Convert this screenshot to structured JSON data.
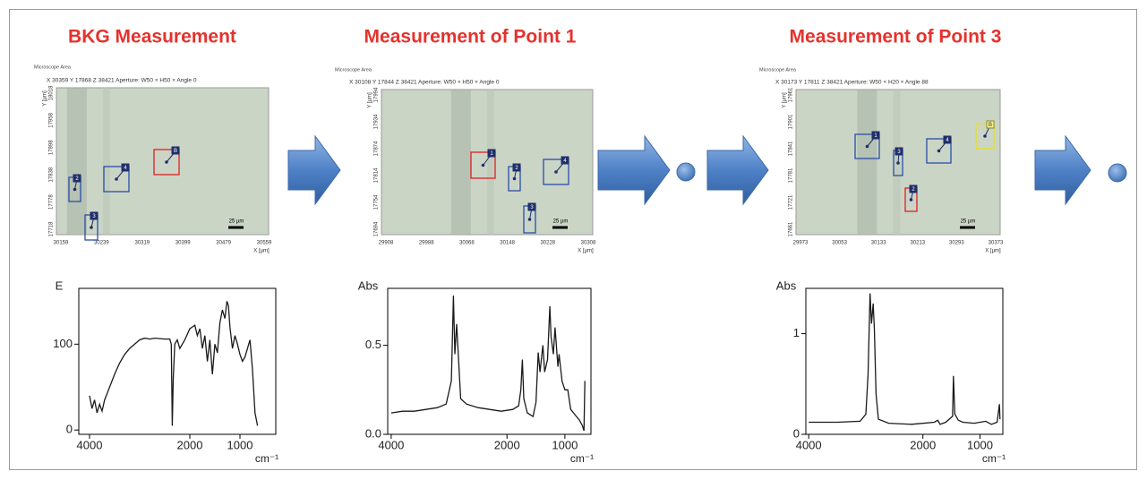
{
  "panels": [
    {
      "title": "BKG Measurement",
      "microscope": {
        "header": "Microscope Area",
        "info": "X 30359  Y 17868  Z 38421   Aperture: W50 × H50 × Angle 0",
        "y_label": "Y [µm]",
        "x_label": "X [µm]",
        "yticks": [
          18018,
          17958,
          17898,
          17838,
          17778,
          17718
        ],
        "xticks": [
          30159,
          30239,
          30319,
          30399,
          30479,
          30559
        ],
        "box_labels": [
          "2",
          "3",
          "4",
          "B"
        ],
        "scale": "25 µm"
      },
      "chart_data": {
        "type": "line",
        "y_label": "E",
        "x_label": "cm⁻¹",
        "xlim": [
          4214,
          286
        ],
        "ylim": [
          -5,
          165
        ],
        "xticks": [
          4000,
          2000,
          1000
        ],
        "yticks": [
          0,
          100
        ],
        "color": "#1a1a1a",
        "x": [
          4000,
          3950,
          3900,
          3850,
          3800,
          3750,
          3700,
          3600,
          3500,
          3400,
          3300,
          3200,
          3100,
          3000,
          2900,
          2800,
          2700,
          2500,
          2400,
          2370,
          2350,
          2330,
          2300,
          2250,
          2200,
          2100,
          2000,
          1950,
          1900,
          1850,
          1800,
          1750,
          1700,
          1650,
          1600,
          1550,
          1500,
          1450,
          1400,
          1350,
          1300,
          1260,
          1230,
          1200,
          1150,
          1100,
          1050,
          1000,
          950,
          900,
          850,
          800,
          750,
          700,
          650
        ],
        "values": [
          40,
          25,
          35,
          20,
          30,
          22,
          35,
          50,
          65,
          78,
          88,
          95,
          100,
          105,
          107,
          106,
          107,
          106,
          106,
          100,
          5,
          60,
          100,
          105,
          95,
          105,
          118,
          120,
          122,
          110,
          118,
          95,
          110,
          80,
          105,
          65,
          100,
          90,
          125,
          140,
          130,
          150,
          145,
          120,
          95,
          110,
          100,
          88,
          80,
          85,
          95,
          105,
          70,
          20,
          5
        ]
      }
    },
    {
      "title": "Measurement of Point 1",
      "microscope": {
        "header": "Microscope Area",
        "info": "X 30108  Y 17844  Z 38421   Aperture: W50 × H50 × Angle 0",
        "y_label": "Y [µm]",
        "x_label": "X [µm]",
        "yticks": [
          17994,
          17934,
          17874,
          17814,
          17754,
          17694
        ],
        "xticks": [
          29908,
          29988,
          30068,
          30148,
          30228,
          30308
        ],
        "box_labels": [
          "1",
          "2",
          "3",
          "4"
        ],
        "scale": "25 µm"
      },
      "chart_data": {
        "type": "line",
        "y_label": "Abs",
        "x_label": "cm⁻¹",
        "xlim": [
          4060,
          550
        ],
        "ylim": [
          0,
          0.82
        ],
        "xticks": [
          4000,
          2000,
          1000
        ],
        "yticks": [
          {
            "value": 0,
            "label": "0.0"
          },
          0.5
        ],
        "color": "#1a1a1a",
        "x": [
          4000,
          3800,
          3600,
          3400,
          3200,
          3050,
          2960,
          2925,
          2900,
          2870,
          2850,
          2800,
          2700,
          2500,
          2300,
          2100,
          1900,
          1800,
          1760,
          1735,
          1710,
          1650,
          1550,
          1500,
          1460,
          1430,
          1380,
          1350,
          1300,
          1260,
          1240,
          1200,
          1170,
          1120,
          1100,
          1050,
          1000,
          950,
          900,
          850,
          800,
          750,
          700,
          670,
          655
        ],
        "values": [
          0.12,
          0.13,
          0.13,
          0.14,
          0.15,
          0.17,
          0.3,
          0.78,
          0.45,
          0.62,
          0.5,
          0.2,
          0.17,
          0.15,
          0.14,
          0.13,
          0.14,
          0.16,
          0.25,
          0.42,
          0.2,
          0.12,
          0.1,
          0.18,
          0.46,
          0.35,
          0.5,
          0.35,
          0.42,
          0.72,
          0.55,
          0.45,
          0.6,
          0.38,
          0.45,
          0.3,
          0.25,
          0.25,
          0.14,
          0.12,
          0.1,
          0.08,
          0.05,
          0.02,
          0.3
        ]
      }
    },
    {
      "title": "Measurement of Point 3",
      "microscope": {
        "header": "Microscope Area",
        "info": "X 30173  Y 17811  Z 38421   Aperture: W50 × H20 × Angle 88",
        "y_label": "Y [µm]",
        "x_label": "X [µm]",
        "yticks": [
          17961,
          17901,
          17841,
          17781,
          17721,
          17661
        ],
        "xticks": [
          29973,
          30053,
          30133,
          30213,
          30293,
          30373
        ],
        "box_labels": [
          "1",
          "3",
          "4",
          "2",
          "B"
        ],
        "scale": "25 µm"
      },
      "chart_data": {
        "type": "line",
        "y_label": "Abs",
        "x_label": "cm⁻¹",
        "xlim": [
          4050,
          600
        ],
        "ylim": [
          0,
          1.45
        ],
        "xticks": [
          4000,
          2000,
          1000
        ],
        "yticks": [
          0,
          1
        ],
        "color": "#1a1a1a",
        "x": [
          4000,
          3500,
          3100,
          3000,
          2960,
          2925,
          2900,
          2870,
          2850,
          2820,
          2780,
          2600,
          2200,
          1800,
          1740,
          1700,
          1600,
          1480,
          1465,
          1440,
          1380,
          1300,
          1100,
          900,
          800,
          700,
          660,
          650
        ],
        "values": [
          0.12,
          0.12,
          0.13,
          0.2,
          0.6,
          1.4,
          1.1,
          1.3,
          1.05,
          0.4,
          0.15,
          0.11,
          0.1,
          0.12,
          0.14,
          0.1,
          0.12,
          0.18,
          0.58,
          0.2,
          0.14,
          0.12,
          0.11,
          0.13,
          0.1,
          0.12,
          0.3,
          0.15
        ]
      }
    }
  ]
}
